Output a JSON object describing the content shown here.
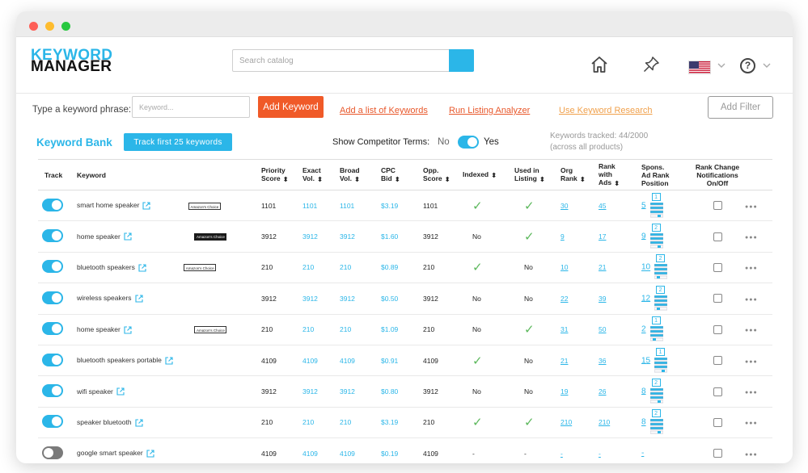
{
  "logo": {
    "line1": "KEYWORD",
    "line2": "MANAGER"
  },
  "search": {
    "placeholder": "Search catalog"
  },
  "nav_icons": [
    "home-icon",
    "pin-icon",
    "us-flag-icon",
    "help-icon"
  ],
  "colors": {
    "accent": "#2bb6e8",
    "orange": "#f05a28",
    "check": "#5cb85c"
  },
  "toolbar": {
    "label": "Type a keyword phrase:",
    "input_placeholder": "Keyword...",
    "add_keyword": "Add Keyword",
    "link_add_list": "Add a list of Keywords",
    "link_listing_analyzer": "Run Listing Analyzer",
    "link_keyword_research": "Use Keyword Research",
    "add_filter": "Add Filter"
  },
  "bank": {
    "title": "Keyword Bank",
    "track_first": "Track first 25 keywords",
    "competitor_label": "Show Competitor Terms:",
    "competitor_no": "No",
    "competitor_yes": "Yes",
    "competitor_on": true,
    "tracked_line1": "Keywords tracked: 44/2000",
    "tracked_line2": "(across all products)"
  },
  "table": {
    "headers": {
      "track": "Track",
      "keyword": "Keyword",
      "priority": [
        "Priority",
        "Score"
      ],
      "exact": [
        "Exact",
        "Vol."
      ],
      "broad": [
        "Broad",
        "Vol."
      ],
      "cpc": [
        "CPC",
        "Bid"
      ],
      "opp": [
        "Opp.",
        "Score"
      ],
      "indexed": "Indexed",
      "in_listing": [
        "Used in",
        "Listing"
      ],
      "org_rank": [
        "Org",
        "Rank"
      ],
      "rank_ads": [
        "Rank",
        "with",
        "Ads"
      ],
      "spons": [
        "Spons.",
        "Ad Rank",
        "Position"
      ],
      "notif": [
        "Rank Change",
        "Notifications",
        "On/Off"
      ]
    },
    "rows": [
      {
        "on": true,
        "keyword": "smart home speaker",
        "badge": "white",
        "badge_text": "Amazon's Choice",
        "priority": "1101",
        "exact": "1101",
        "broad": "1101",
        "cpc": "$3.19",
        "opp": "1101",
        "indexed": "check",
        "listing": "check",
        "org": "30",
        "ads": "45",
        "spons": "5",
        "pos": "1",
        "fill": 3
      },
      {
        "on": true,
        "keyword": "home speaker",
        "badge": "black",
        "badge_text": "Amazon's Choice",
        "priority": "3912",
        "exact": "3912",
        "broad": "3912",
        "cpc": "$1.60",
        "opp": "3912",
        "indexed": "No",
        "listing": "check",
        "org": "9",
        "ads": "17",
        "spons": "9",
        "pos": "2",
        "fill": 3
      },
      {
        "on": true,
        "keyword": "bluetooth speakers",
        "badge": "white",
        "badge_text": "Amazon's Choice",
        "priority": "210",
        "exact": "210",
        "broad": "210",
        "cpc": "$0.89",
        "opp": "210",
        "indexed": "check",
        "listing": "No",
        "org": "10",
        "ads": "21",
        "spons": "10",
        "pos": "2",
        "fill": 1
      },
      {
        "on": true,
        "keyword": "wireless speakers",
        "badge": "",
        "badge_text": "",
        "priority": "3912",
        "exact": "3912",
        "broad": "3912",
        "cpc": "$0.50",
        "opp": "3912",
        "indexed": "No",
        "listing": "No",
        "org": "22",
        "ads": "39",
        "spons": "12",
        "pos": "2",
        "fill": 1
      },
      {
        "on": true,
        "keyword": "home speaker",
        "badge": "white",
        "badge_text": "Amazon's Choice",
        "priority": "210",
        "exact": "210",
        "broad": "210",
        "cpc": "$1.09",
        "opp": "210",
        "indexed": "No",
        "listing": "check",
        "org": "31",
        "ads": "50",
        "spons": "2",
        "pos": "1",
        "fill": 1
      },
      {
        "on": true,
        "keyword": "bluetooth speakers portable",
        "badge": "",
        "badge_text": "",
        "priority": "4109",
        "exact": "4109",
        "broad": "4109",
        "cpc": "$0.91",
        "opp": "4109",
        "indexed": "check",
        "listing": "No",
        "org": "21",
        "ads": "36",
        "spons": "15",
        "pos": "1",
        "fill": 3
      },
      {
        "on": true,
        "keyword": "wifi speaker",
        "badge": "",
        "badge_text": "",
        "priority": "3912",
        "exact": "3912",
        "broad": "3912",
        "cpc": "$0.80",
        "opp": "3912",
        "indexed": "No",
        "listing": "No",
        "org": "19",
        "ads": "26",
        "spons": "8",
        "pos": "2",
        "fill": 3
      },
      {
        "on": true,
        "keyword": "speaker bluetooth",
        "badge": "",
        "badge_text": "",
        "priority": "210",
        "exact": "210",
        "broad": "210",
        "cpc": "$3.19",
        "opp": "210",
        "indexed": "check",
        "listing": "check",
        "org": "210",
        "ads": "210",
        "spons": "8",
        "pos": "2",
        "fill": 3
      },
      {
        "on": false,
        "keyword": "google smart speaker",
        "badge": "",
        "badge_text": "",
        "priority": "4109",
        "exact": "4109",
        "broad": "4109",
        "cpc": "$0.19",
        "opp": "4109",
        "indexed": "-",
        "listing": "-",
        "org": "-",
        "ads": "-",
        "spons": "-",
        "pos": "",
        "fill": 0
      }
    ]
  }
}
